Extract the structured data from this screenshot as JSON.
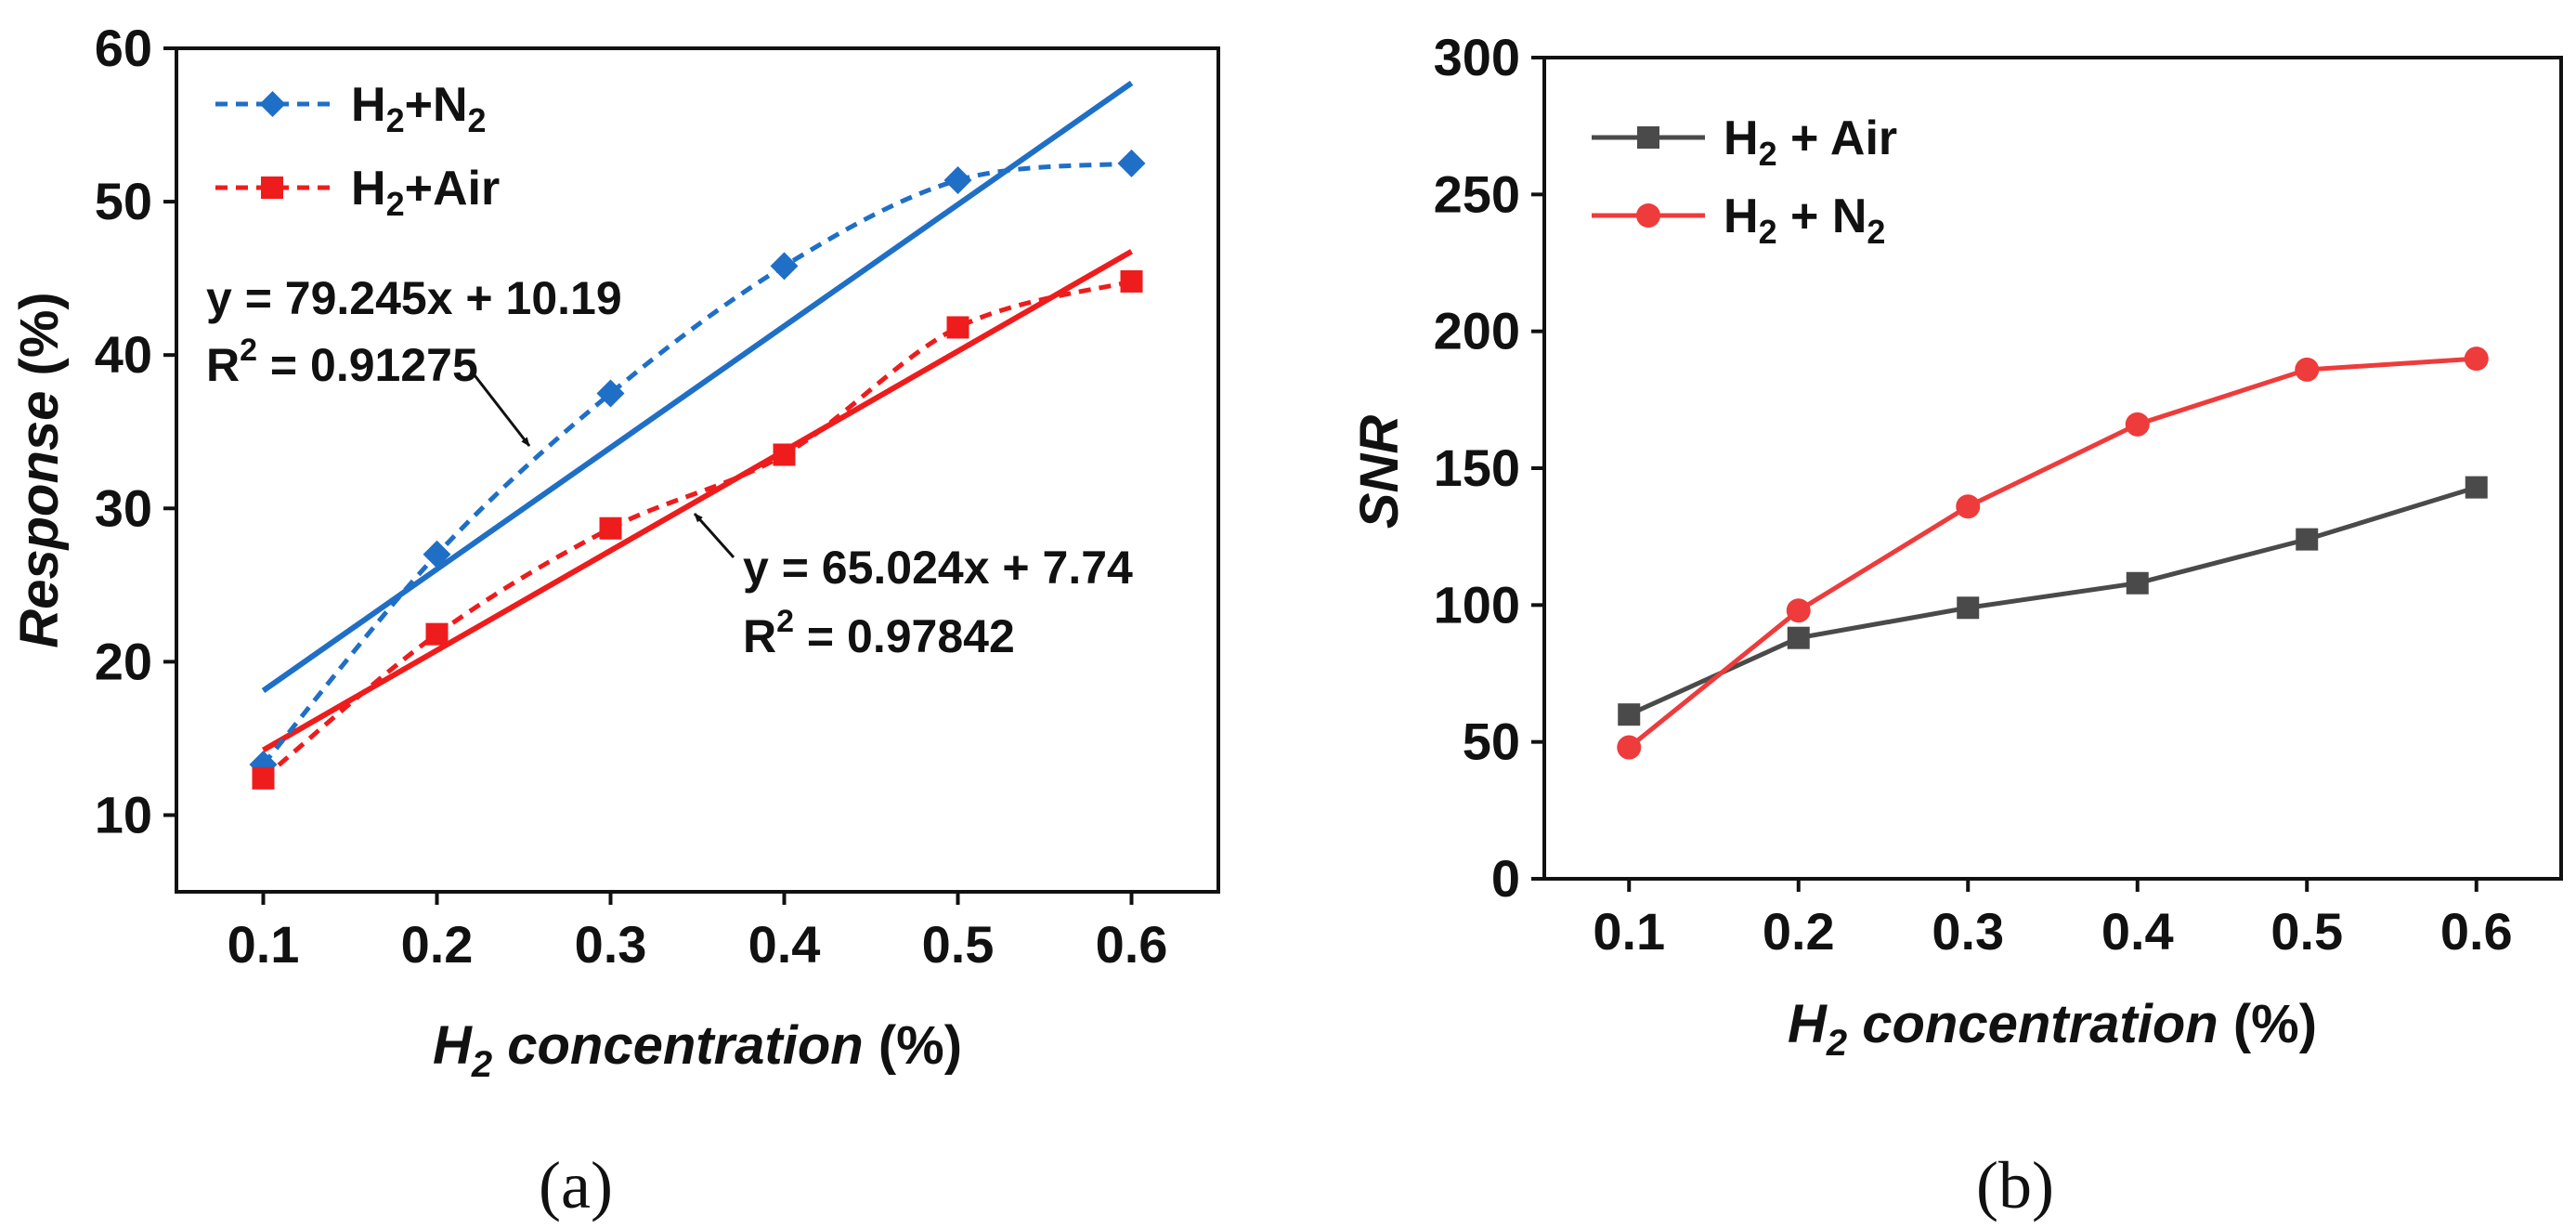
{
  "chart_data": [
    {
      "panel": "a",
      "type": "line",
      "caption": "(a)",
      "xlabel": "H2 concentration (%)",
      "ylabel": "Response (%)",
      "xlim": [
        0.05,
        0.65
      ],
      "ylim": [
        5,
        60
      ],
      "xticks": [
        0.1,
        0.2,
        0.3,
        0.4,
        0.5,
        0.6
      ],
      "yticks": [
        10,
        20,
        30,
        40,
        50,
        60
      ],
      "series": [
        {
          "name": "H2+N2",
          "color": "#1f6fc6",
          "marker": "diamond",
          "style": "dashed",
          "x": [
            0.1,
            0.2,
            0.3,
            0.4,
            0.5,
            0.6
          ],
          "y": [
            13.3,
            27.0,
            37.5,
            45.8,
            51.4,
            52.5
          ]
        },
        {
          "name": "H2+Air",
          "color": "#ee1c1c",
          "marker": "square",
          "style": "dashed",
          "x": [
            0.1,
            0.2,
            0.3,
            0.4,
            0.5,
            0.6
          ],
          "y": [
            12.4,
            21.8,
            28.7,
            33.5,
            41.8,
            44.8
          ]
        }
      ],
      "fits": [
        {
          "name": "H2+N2 linear fit",
          "color": "#1f6fc6",
          "slope": 79.245,
          "intercept": 10.19,
          "equation": "y = 79.245x + 10.19",
          "r2_label": "R",
          "r2_value": " = 0.91275"
        },
        {
          "name": "H2+Air linear fit",
          "color": "#ee1c1c",
          "slope": 65.024,
          "intercept": 7.74,
          "equation": "y = 65.024x + 7.74",
          "r2_label": "R",
          "r2_value": " = 0.97842"
        }
      ]
    },
    {
      "panel": "b",
      "type": "line",
      "caption": "(b)",
      "xlabel": "H2 concentration (%)",
      "ylabel": "SNR",
      "xlim": [
        0.05,
        0.65
      ],
      "ylim": [
        0,
        300
      ],
      "xticks": [
        0.1,
        0.2,
        0.3,
        0.4,
        0.5,
        0.6
      ],
      "yticks": [
        0,
        50,
        100,
        150,
        200,
        250,
        300
      ],
      "series": [
        {
          "name": "H2 + Air",
          "color": "#4a4a4a",
          "marker": "square",
          "style": "solid",
          "x": [
            0.1,
            0.2,
            0.3,
            0.4,
            0.5,
            0.6
          ],
          "y": [
            60,
            88,
            99,
            108,
            124,
            143
          ]
        },
        {
          "name": "H2 + N2",
          "color": "#ee3b3b",
          "marker": "circle",
          "style": "solid",
          "x": [
            0.1,
            0.2,
            0.3,
            0.4,
            0.5,
            0.6
          ],
          "y": [
            48,
            98,
            136,
            166,
            186,
            190
          ]
        }
      ]
    }
  ]
}
